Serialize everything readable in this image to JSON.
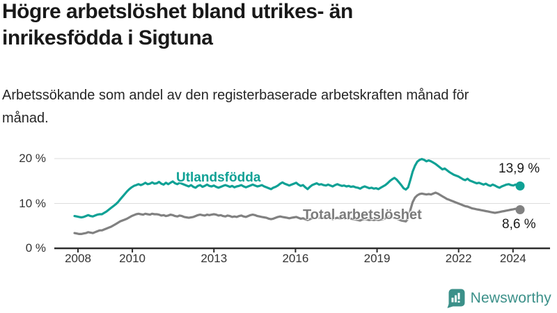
{
  "header": {
    "title": "Högre arbetslöshet bland utrikes- än inrikesfödda i Sigtuna",
    "subtitle": "Arbetssökande som andel av den registerbaserade arbetskraften månad för månad."
  },
  "chart_data": {
    "type": "line",
    "title": "Högre arbetslöshet bland utrikes- än inrikesfödda i Sigtuna",
    "xlabel": "",
    "ylabel": "Arbetssökande som andel av den registerbaserade arbetskraften",
    "x_monthly_from": "2008-01",
    "x_monthly_to": "2024-04",
    "ylim": [
      0,
      21
    ],
    "grid": "horizontal",
    "legend_position": "inline-labels",
    "x_ticks": [
      {
        "year": 2008,
        "label": "2008"
      },
      {
        "year": 2010,
        "label": "2010"
      },
      {
        "year": 2013,
        "label": "2013"
      },
      {
        "year": 2016,
        "label": "2016"
      },
      {
        "year": 2019,
        "label": "2019"
      },
      {
        "year": 2022,
        "label": "2022"
      },
      {
        "year": 2024,
        "label": "2024"
      }
    ],
    "y_ticks": [
      {
        "value": 0,
        "label": "0 %"
      },
      {
        "value": 10,
        "label": "10 %"
      },
      {
        "value": 20,
        "label": "20 %"
      }
    ],
    "series": [
      {
        "name": "Utlandsfödda",
        "color": "#0FA195",
        "end_label": "13,9 %",
        "end_value": 13.9,
        "values": [
          7.2,
          7.1,
          7.0,
          6.9,
          7.0,
          7.2,
          7.4,
          7.2,
          7.1,
          7.3,
          7.5,
          7.6,
          7.6,
          7.9,
          8.2,
          8.6,
          9.0,
          9.4,
          9.8,
          10.3,
          10.9,
          11.5,
          12.1,
          12.7,
          13.2,
          13.6,
          13.9,
          14.1,
          14.3,
          14.1,
          14.3,
          14.6,
          14.3,
          14.4,
          14.7,
          14.4,
          14.5,
          14.8,
          14.4,
          14.2,
          14.6,
          14.3,
          14.6,
          14.9,
          14.5,
          14.3,
          14.6,
          14.4,
          14.2,
          14.0,
          13.8,
          14.1,
          13.7,
          13.5,
          13.9,
          14.1,
          13.7,
          13.9,
          14.2,
          13.9,
          13.8,
          14.0,
          13.7,
          13.5,
          13.7,
          13.9,
          14.1,
          13.9,
          13.7,
          13.9,
          13.6,
          13.8,
          13.9,
          14.1,
          13.8,
          13.6,
          13.8,
          14.0,
          14.2,
          14.0,
          13.8,
          13.9,
          14.1,
          13.8,
          13.6,
          13.4,
          13.2,
          13.5,
          13.7,
          14.0,
          14.4,
          14.7,
          14.4,
          14.2,
          14.0,
          14.2,
          14.4,
          14.6,
          14.2,
          13.9,
          14.1,
          13.6,
          13.2,
          13.7,
          14.1,
          14.3,
          14.5,
          14.2,
          14.3,
          14.1,
          14.0,
          14.2,
          14.0,
          13.8,
          14.1,
          14.3,
          14.1,
          13.9,
          14.0,
          13.8,
          13.9,
          13.7,
          13.8,
          13.6,
          13.5,
          13.3,
          13.6,
          13.8,
          13.6,
          13.4,
          13.5,
          13.3,
          13.4,
          13.2,
          13.5,
          13.8,
          14.1,
          14.5,
          15.0,
          15.4,
          15.7,
          15.3,
          14.7,
          14.1,
          13.4,
          13.1,
          13.6,
          15.3,
          17.1,
          18.4,
          19.3,
          19.7,
          19.9,
          19.7,
          19.4,
          19.6,
          19.4,
          19.1,
          18.8,
          18.4,
          18.0,
          17.6,
          17.8,
          17.4,
          17.0,
          16.7,
          16.4,
          16.2,
          16.0,
          15.7,
          15.4,
          15.2,
          15.5,
          15.1,
          14.9,
          14.7,
          14.5,
          14.6,
          14.4,
          14.2,
          14.4,
          14.1,
          13.9,
          14.2,
          14.0,
          13.7,
          13.5,
          13.8,
          14.0,
          14.2,
          14.3,
          14.1,
          14.0,
          14.2,
          14.0,
          13.9
        ]
      },
      {
        "name": "Total arbetslöshet",
        "color": "#818181",
        "end_label": "8,6 %",
        "end_value": 8.6,
        "values": [
          3.4,
          3.3,
          3.2,
          3.2,
          3.3,
          3.4,
          3.6,
          3.5,
          3.4,
          3.6,
          3.8,
          4.0,
          4.0,
          4.2,
          4.4,
          4.6,
          4.8,
          5.1,
          5.4,
          5.7,
          6.0,
          6.2,
          6.4,
          6.6,
          6.9,
          7.2,
          7.4,
          7.6,
          7.7,
          7.6,
          7.5,
          7.7,
          7.6,
          7.5,
          7.7,
          7.6,
          7.6,
          7.5,
          7.3,
          7.4,
          7.2,
          7.3,
          7.5,
          7.4,
          7.2,
          7.1,
          7.3,
          7.2,
          7.0,
          6.9,
          6.8,
          6.9,
          7.0,
          7.2,
          7.4,
          7.5,
          7.4,
          7.3,
          7.5,
          7.4,
          7.5,
          7.6,
          7.5,
          7.3,
          7.4,
          7.2,
          7.1,
          7.3,
          7.2,
          7.0,
          7.1,
          7.0,
          7.2,
          7.3,
          7.1,
          7.0,
          7.2,
          7.4,
          7.5,
          7.4,
          7.2,
          7.1,
          7.0,
          6.9,
          6.8,
          6.6,
          6.5,
          6.6,
          6.8,
          7.0,
          7.1,
          7.0,
          6.9,
          6.8,
          6.7,
          6.8,
          6.9,
          7.0,
          6.8,
          6.6,
          6.7,
          6.5,
          6.3,
          6.5,
          6.7,
          6.8,
          6.9,
          6.8,
          6.9,
          6.8,
          6.7,
          6.8,
          6.7,
          6.5,
          6.7,
          6.8,
          6.7,
          6.6,
          6.7,
          6.6,
          6.7,
          6.6,
          6.5,
          6.4,
          6.3,
          6.2,
          6.4,
          6.5,
          6.4,
          6.3,
          6.4,
          6.3,
          6.4,
          6.3,
          6.4,
          6.5,
          6.7,
          6.9,
          7.1,
          7.0,
          6.8,
          6.6,
          6.4,
          6.2,
          6.1,
          6.0,
          6.6,
          8.6,
          10.3,
          11.3,
          11.8,
          12.1,
          12.2,
          12.1,
          12.0,
          12.1,
          12.0,
          12.2,
          12.4,
          12.2,
          11.9,
          11.6,
          11.3,
          11.0,
          10.8,
          10.6,
          10.4,
          10.2,
          10.0,
          9.8,
          9.6,
          9.4,
          9.3,
          9.1,
          8.9,
          8.8,
          8.7,
          8.6,
          8.5,
          8.4,
          8.3,
          8.2,
          8.1,
          8.0,
          7.9,
          8.0,
          8.1,
          8.2,
          8.3,
          8.4,
          8.5,
          8.6,
          8.7,
          8.8,
          8.7,
          8.6
        ]
      }
    ],
    "colors": {
      "accent_teal": "#0FA195",
      "line_gray": "#818181",
      "gridline": "#dcdcdc",
      "axis": "#2d2d2d",
      "text": "#333333"
    }
  },
  "footer": {
    "brand": "Newsworthy",
    "brand_color": "#3B9089"
  }
}
